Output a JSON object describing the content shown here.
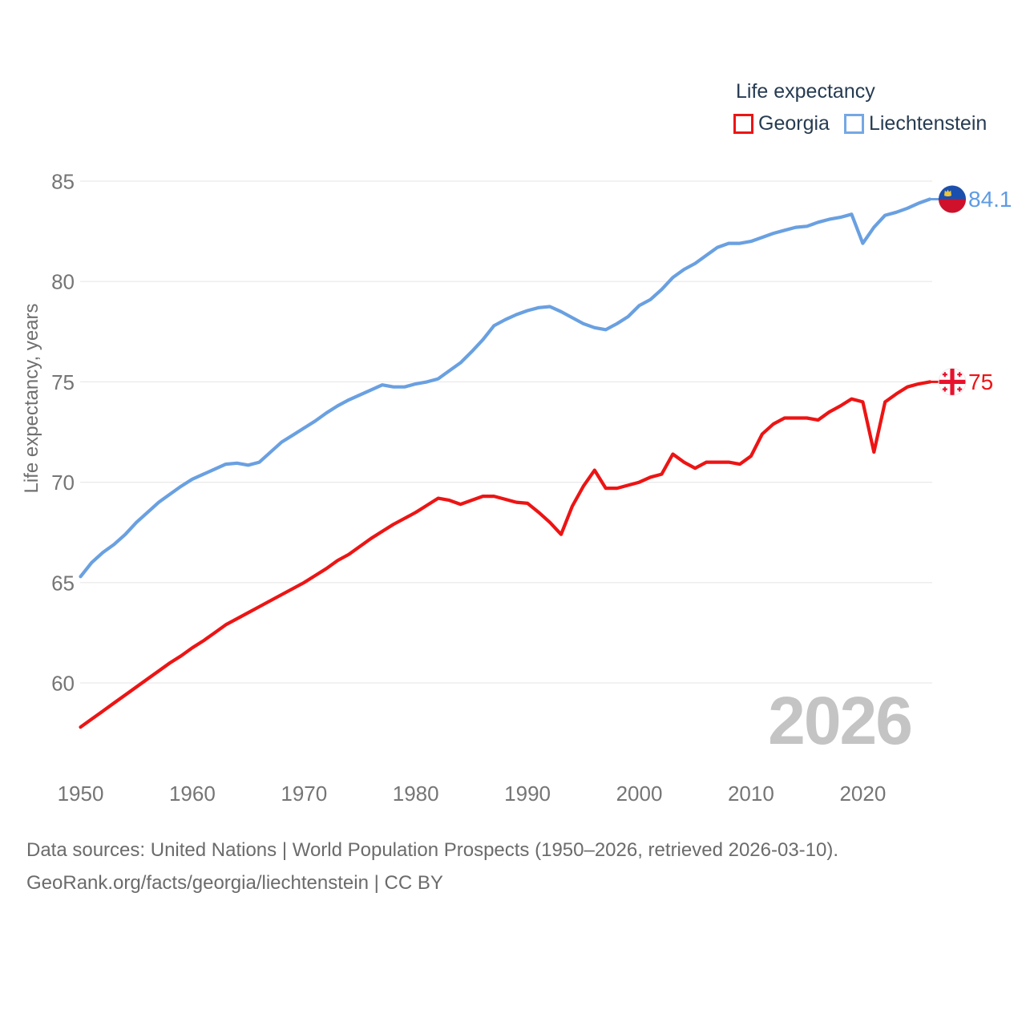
{
  "legend": {
    "title": "Life expectancy",
    "items": [
      {
        "label": "Georgia",
        "color": "#ed1414"
      },
      {
        "label": "Liechtenstein",
        "color": "#69a0e1"
      }
    ]
  },
  "y_axis": {
    "title": "Life expectancy, years",
    "ticks": [
      85,
      80,
      75,
      70,
      65,
      60
    ]
  },
  "x_axis": {
    "ticks": [
      1950,
      1960,
      1970,
      1980,
      1990,
      2000,
      2010,
      2020
    ]
  },
  "end_labels": [
    {
      "series": "Liechtenstein",
      "value": "84.1",
      "color": "#5e9be4"
    },
    {
      "series": "Georgia",
      "value": "75",
      "color": "#ed1414"
    }
  ],
  "watermark": "2026",
  "footer": {
    "line1": "Data sources: United Nations | World Population Prospects (1950–2026, retrieved 2026-03-10).",
    "line2": "GeoRank.org/facts/georgia/liechtenstein | CC BY"
  },
  "chart_data": {
    "type": "line",
    "title": "Life expectancy",
    "xlabel": "",
    "ylabel": "Life expectancy, years",
    "x_start": 1950,
    "x_end": 2026,
    "x_step": 1,
    "ylim": [
      57,
      86
    ],
    "grid": true,
    "legend_position": "top-right",
    "series": [
      {
        "name": "Georgia",
        "color": "#ed1414",
        "end_value_label": "75",
        "values": [
          57.8,
          58.2,
          58.6,
          59,
          59.4,
          59.8,
          60.2,
          60.6,
          61,
          61.35,
          61.75,
          62.1,
          62.5,
          62.9,
          63.2,
          63.5,
          63.8,
          64.1,
          64.4,
          64.7,
          65,
          65.35,
          65.7,
          66.1,
          66.4,
          66.8,
          67.2,
          67.55,
          67.9,
          68.2,
          68.5,
          68.85,
          69.2,
          69.1,
          68.9,
          69.1,
          69.3,
          69.3,
          69.15,
          69,
          68.95,
          68.5,
          68,
          67.4,
          68.8,
          69.8,
          70.6,
          69.7,
          69.7,
          69.85,
          70,
          70.25,
          70.4,
          71.4,
          71,
          70.7,
          71,
          71,
          71,
          70.9,
          71.3,
          72.4,
          72.9,
          73.2,
          73.2,
          73.2,
          73.1,
          73.5,
          73.8,
          74.15,
          74,
          71.5,
          74,
          74.4,
          74.75,
          74.9,
          75
        ]
      },
      {
        "name": "Liechtenstein",
        "color": "#69a0e1",
        "end_value_label": "84.1",
        "values": [
          65.3,
          66,
          66.5,
          66.9,
          67.4,
          68,
          68.5,
          69,
          69.4,
          69.8,
          70.15,
          70.4,
          70.65,
          70.9,
          70.95,
          70.85,
          71,
          71.5,
          72,
          72.35,
          72.7,
          73.05,
          73.45,
          73.8,
          74.1,
          74.35,
          74.6,
          74.85,
          74.75,
          74.75,
          74.9,
          75,
          75.15,
          75.55,
          75.95,
          76.5,
          77.1,
          77.8,
          78.1,
          78.35,
          78.55,
          78.7,
          78.75,
          78.5,
          78.2,
          77.9,
          77.7,
          77.6,
          77.9,
          78.25,
          78.8,
          79.1,
          79.6,
          80.2,
          80.6,
          80.9,
          81.3,
          81.7,
          81.9,
          81.9,
          82,
          82.2,
          82.4,
          82.55,
          82.7,
          82.75,
          82.95,
          83.1,
          83.2,
          83.35,
          81.9,
          82.7,
          83.3,
          83.45,
          83.65,
          83.9,
          84.1
        ]
      }
    ]
  }
}
